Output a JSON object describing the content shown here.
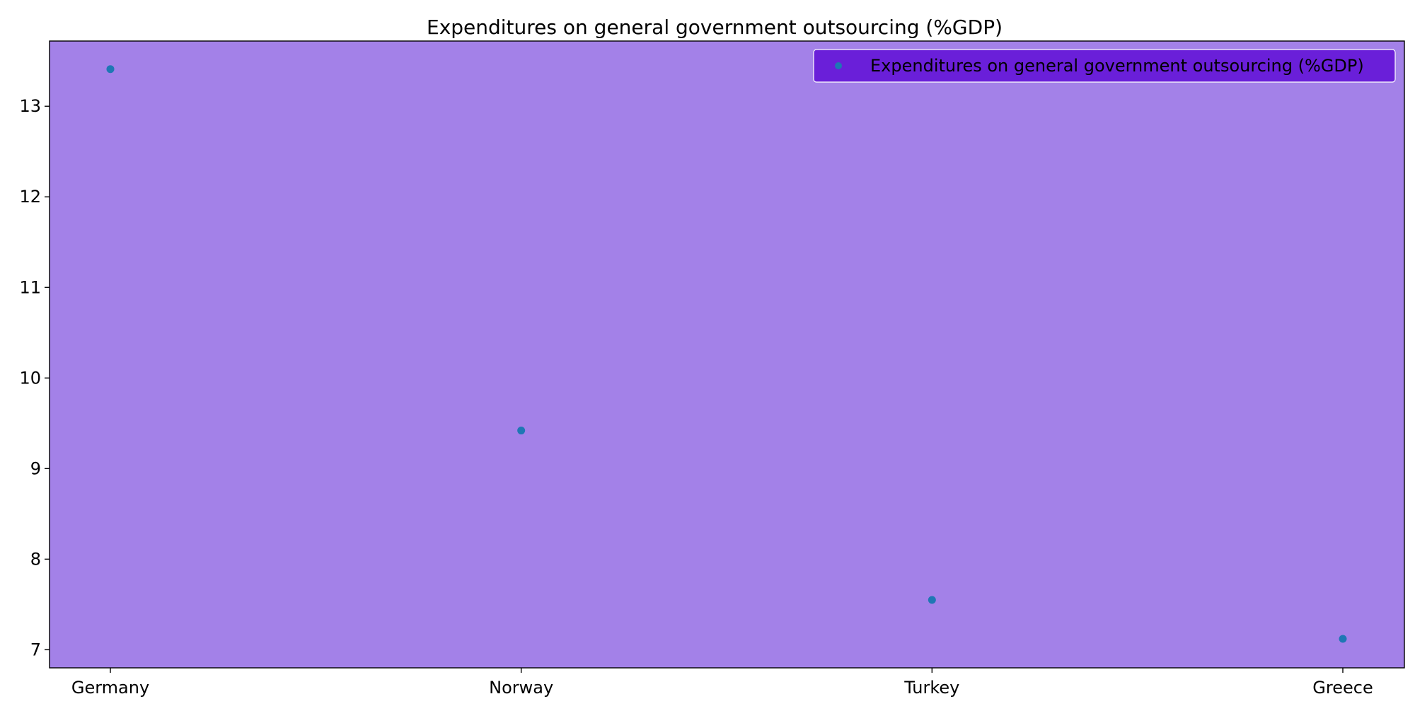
{
  "chart_data": {
    "type": "scatter",
    "title": "Expenditures on general government outsourcing (%GDP)",
    "xlabel": "",
    "ylabel": "",
    "categories": [
      "Germany",
      "Norway",
      "Turkey",
      "Greece"
    ],
    "series": [
      {
        "name": "Expenditures on general government outsourcing (%GDP)",
        "values": [
          13.41,
          9.42,
          7.55,
          7.12
        ]
      }
    ],
    "yticks": [
      7,
      8,
      9,
      10,
      11,
      12,
      13
    ],
    "ylim": [
      6.8,
      13.72
    ],
    "grid": false,
    "legend_position": "top-right",
    "colors": {
      "plot_background": "#a381e8",
      "legend_background": "#6a1fd9",
      "marker": "#1f77b4",
      "axes": "#000000"
    }
  }
}
